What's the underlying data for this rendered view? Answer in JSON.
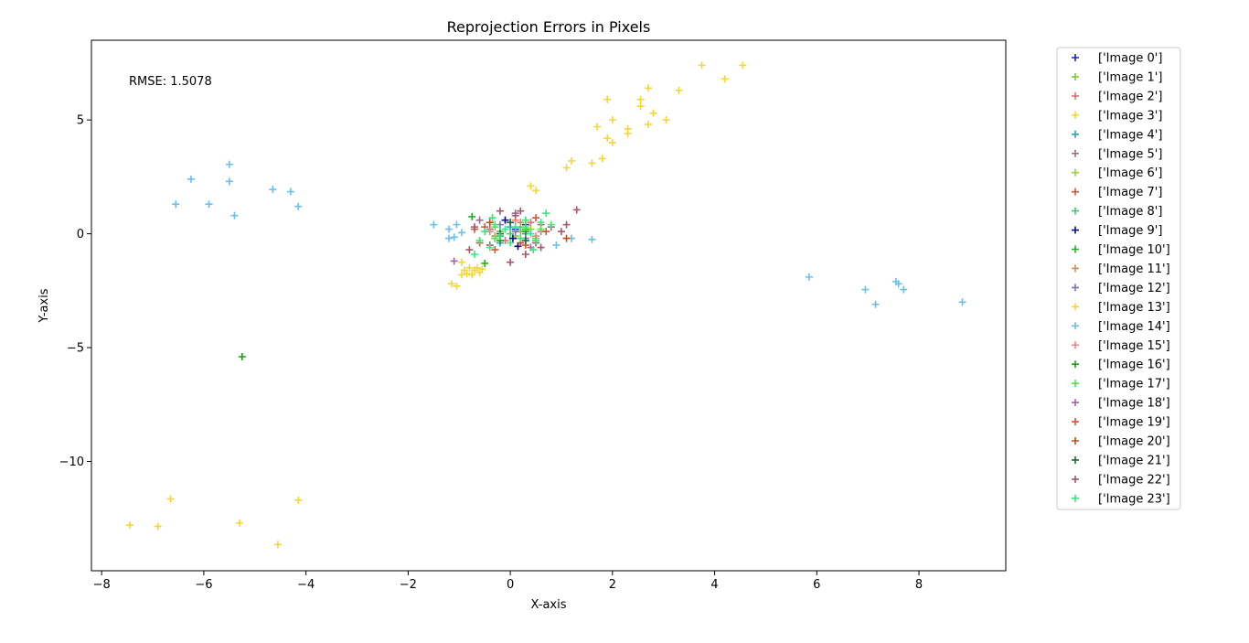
{
  "chart_data": {
    "type": "scatter",
    "title": "Reprojection Errors in Pixels",
    "xlabel": "X-axis",
    "ylabel": "Y-axis",
    "xlim": [
      -8.2,
      9.7
    ],
    "ylim": [
      -14.8,
      8.5
    ],
    "xticks": [
      -8,
      -6,
      -4,
      -2,
      0,
      2,
      4,
      6,
      8
    ],
    "yticks": [
      5,
      0,
      -5,
      -10
    ],
    "xtick_labels": [
      "−8",
      "−6",
      "−4",
      "−2",
      "0",
      "2",
      "4",
      "6",
      "8"
    ],
    "ytick_labels": [
      "5",
      "0",
      "−5",
      "−10"
    ],
    "grid": false,
    "legend_position": "outside right",
    "marker": "+",
    "annotation": "RMSE: 1.5078",
    "series": [
      {
        "name": "['Image 0']",
        "color": "#1f1fd0",
        "points": [
          [
            0.1,
            0.2
          ],
          [
            -0.2,
            -0.1
          ],
          [
            0.3,
            0.4
          ]
        ]
      },
      {
        "name": "['Image 1']",
        "color": "#7acc3a",
        "points": [
          [
            0.2,
            0.1
          ],
          [
            -0.3,
            0.3
          ],
          [
            0.5,
            -0.2
          ]
        ]
      },
      {
        "name": "['Image 2']",
        "color": "#e07070",
        "points": [
          [
            0.4,
            0.5
          ],
          [
            -0.1,
            -0.3
          ],
          [
            0.6,
            0.1
          ]
        ]
      },
      {
        "name": "['Image 3']",
        "color": "#f5d63a",
        "points": [
          [
            0.4,
            2.1
          ],
          [
            0.5,
            1.9
          ],
          [
            1.1,
            2.9
          ],
          [
            1.2,
            3.2
          ],
          [
            1.6,
            3.1
          ],
          [
            1.7,
            4.7
          ],
          [
            1.8,
            3.3
          ],
          [
            1.9,
            4.2
          ],
          [
            1.9,
            5.9
          ],
          [
            2.0,
            4.0
          ],
          [
            2.0,
            5.0
          ],
          [
            2.3,
            4.6
          ],
          [
            2.3,
            4.4
          ],
          [
            2.55,
            5.9
          ],
          [
            2.55,
            5.6
          ],
          [
            2.7,
            4.8
          ],
          [
            2.7,
            6.4
          ],
          [
            2.8,
            5.3
          ],
          [
            3.05,
            5.0
          ],
          [
            3.3,
            6.3
          ],
          [
            3.75,
            7.4
          ],
          [
            4.2,
            6.8
          ],
          [
            4.55,
            7.4
          ]
        ]
      },
      {
        "name": "['Image 4']",
        "color": "#2aa5c0",
        "points": [
          [
            0.0,
            0.3
          ],
          [
            -0.2,
            -0.4
          ],
          [
            0.3,
            0.0
          ]
        ]
      },
      {
        "name": "['Image 5']",
        "color": "#a06a7a",
        "points": [
          [
            0.2,
            -0.2
          ],
          [
            -0.4,
            0.2
          ],
          [
            0.6,
            0.4
          ]
        ]
      },
      {
        "name": "['Image 6']",
        "color": "#9acd32",
        "points": [
          [
            0.1,
            -0.1
          ],
          [
            -0.3,
            -0.2
          ],
          [
            0.4,
            0.2
          ]
        ]
      },
      {
        "name": "['Image 7']",
        "color": "#c85a3c",
        "points": [
          [
            -0.5,
            0.3
          ],
          [
            0.3,
            -0.5
          ],
          [
            0.7,
            0.1
          ],
          [
            -0.6,
            -0.4
          ]
        ]
      },
      {
        "name": "['Image 8']",
        "color": "#3dcc6a",
        "points": [
          [
            0.0,
            0.0
          ],
          [
            0.2,
            0.3
          ],
          [
            -0.2,
            0.1
          ]
        ]
      },
      {
        "name": "['Image 9']",
        "color": "#0a0a80",
        "points": [
          [
            0.15,
            -0.55
          ],
          [
            -0.1,
            0.6
          ],
          [
            0.05,
            -0.2
          ]
        ]
      },
      {
        "name": "['Image 10']",
        "color": "#22b022",
        "points": [
          [
            -0.75,
            0.75
          ],
          [
            -0.5,
            -1.3
          ],
          [
            0.3,
            0.2
          ]
        ]
      },
      {
        "name": "['Image 11']",
        "color": "#d09050",
        "points": [
          [
            -0.3,
            -0.1
          ],
          [
            0.2,
            0.5
          ],
          [
            0.5,
            -0.3
          ]
        ]
      },
      {
        "name": "['Image 12']",
        "color": "#8070c0",
        "points": [
          [
            -0.2,
            0.4
          ],
          [
            0.3,
            -0.2
          ],
          [
            0.1,
            0.1
          ]
        ]
      },
      {
        "name": "['Image 13']",
        "color": "#f5d63a",
        "points": [
          [
            -0.95,
            -1.8
          ],
          [
            -0.9,
            -1.6
          ],
          [
            -0.85,
            -1.75
          ],
          [
            -0.8,
            -1.5
          ],
          [
            -0.75,
            -1.8
          ],
          [
            -0.7,
            -1.6
          ],
          [
            -0.65,
            -1.5
          ],
          [
            -0.6,
            -1.7
          ],
          [
            -0.55,
            -1.55
          ],
          [
            -1.05,
            -2.3
          ],
          [
            -1.15,
            -2.2
          ],
          [
            -0.95,
            -1.25
          ],
          [
            -7.45,
            -12.8
          ],
          [
            -6.9,
            -12.85
          ],
          [
            -6.65,
            -11.65
          ],
          [
            -5.3,
            -12.7
          ],
          [
            -4.55,
            -13.65
          ],
          [
            -4.15,
            -11.7
          ]
        ]
      },
      {
        "name": "['Image 14']",
        "color": "#6cbfea",
        "points": [
          [
            -6.55,
            1.3
          ],
          [
            -6.25,
            2.4
          ],
          [
            -5.9,
            1.3
          ],
          [
            -5.5,
            3.05
          ],
          [
            -5.5,
            2.3
          ],
          [
            -5.4,
            0.8
          ],
          [
            -4.65,
            1.95
          ],
          [
            -4.3,
            1.85
          ],
          [
            -4.15,
            1.2
          ],
          [
            -1.5,
            0.4
          ],
          [
            -1.2,
            -0.2
          ],
          [
            -1.2,
            0.2
          ],
          [
            -1.1,
            -0.15
          ],
          [
            -1.05,
            0.4
          ],
          [
            -0.95,
            0.05
          ],
          [
            0.9,
            -0.5
          ],
          [
            1.2,
            -0.2
          ],
          [
            1.6,
            -0.25
          ],
          [
            5.85,
            -1.9
          ],
          [
            6.95,
            -2.45
          ],
          [
            7.15,
            -3.1
          ],
          [
            7.55,
            -2.1
          ],
          [
            7.6,
            -2.2
          ],
          [
            7.7,
            -2.45
          ],
          [
            8.85,
            -3.0
          ]
        ]
      },
      {
        "name": "['Image 15']",
        "color": "#f08080",
        "points": [
          [
            -0.4,
            0.1
          ],
          [
            0.5,
            -0.1
          ],
          [
            0.1,
            0.6
          ]
        ]
      },
      {
        "name": "['Image 16']",
        "color": "#1aa01a",
        "points": [
          [
            -5.25,
            -5.4
          ],
          [
            0.3,
            0.1
          ],
          [
            -0.2,
            -0.3
          ]
        ]
      },
      {
        "name": "['Image 17']",
        "color": "#4ee84e",
        "points": [
          [
            0.3,
            0.3
          ],
          [
            -0.3,
            -0.2
          ],
          [
            0.6,
            0.2
          ]
        ]
      },
      {
        "name": "['Image 18']",
        "color": "#9a6a9a",
        "points": [
          [
            -1.1,
            -1.2
          ],
          [
            -0.6,
            0.6
          ],
          [
            0.4,
            -0.6
          ],
          [
            0.1,
            0.9
          ]
        ]
      },
      {
        "name": "['Image 19']",
        "color": "#d0553a",
        "points": [
          [
            -0.3,
            -0.7
          ],
          [
            0.5,
            0.7
          ],
          [
            -0.7,
            0.2
          ]
        ]
      },
      {
        "name": "['Image 20']",
        "color": "#c84a10",
        "points": [
          [
            1.1,
            -0.2
          ],
          [
            0.2,
            -0.4
          ],
          [
            -0.4,
            0.5
          ]
        ]
      },
      {
        "name": "['Image 21']",
        "color": "#1a6a2a",
        "points": [
          [
            0.0,
            0.5
          ],
          [
            -0.2,
            0.0
          ],
          [
            0.3,
            -0.3
          ]
        ]
      },
      {
        "name": "['Image 22']",
        "color": "#a05a6a",
        "points": [
          [
            -0.8,
            -0.7
          ],
          [
            -0.7,
            0.3
          ],
          [
            -0.4,
            -0.5
          ],
          [
            0.1,
            0.8
          ],
          [
            0.3,
            -0.9
          ],
          [
            0.6,
            -0.6
          ],
          [
            0.8,
            0.3
          ],
          [
            1.0,
            0.1
          ],
          [
            1.1,
            0.4
          ],
          [
            1.3,
            1.05
          ],
          [
            0.0,
            -1.25
          ],
          [
            -0.2,
            1.0
          ],
          [
            0.2,
            1.0
          ],
          [
            0.5,
            -0.4
          ]
        ]
      },
      {
        "name": "['Image 23']",
        "color": "#3de57a",
        "points": [
          [
            -0.6,
            -0.3
          ],
          [
            -0.5,
            0.1
          ],
          [
            -0.4,
            -0.6
          ],
          [
            -0.3,
            0.4
          ],
          [
            -0.2,
            -0.1
          ],
          [
            -0.1,
            0.2
          ],
          [
            0.0,
            -0.4
          ],
          [
            0.1,
            0.3
          ],
          [
            0.2,
            -0.2
          ],
          [
            0.3,
            0.6
          ],
          [
            0.4,
            0.0
          ],
          [
            0.5,
            -0.3
          ],
          [
            0.6,
            0.5
          ],
          [
            0.7,
            0.9
          ],
          [
            0.8,
            0.4
          ],
          [
            -0.7,
            -0.9
          ],
          [
            0.45,
            -0.7
          ],
          [
            -0.35,
            0.7
          ]
        ]
      }
    ]
  }
}
